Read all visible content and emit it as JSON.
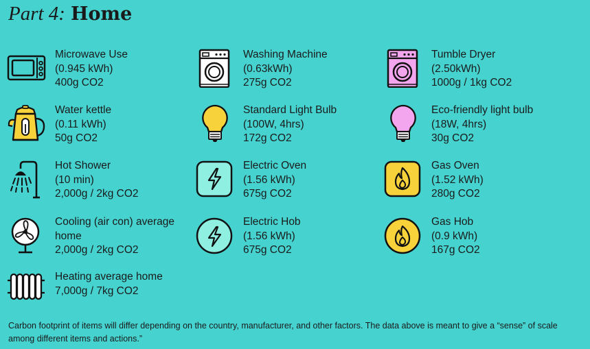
{
  "header": {
    "part": "Part 4:",
    "title": "Home"
  },
  "items": [
    {
      "name": "Microwave Use",
      "usage": "(0.945 kWh)",
      "co2": "400g CO2",
      "icon": "microwave-icon"
    },
    {
      "name": "Washing Machine",
      "usage": "(0.63kWh)",
      "co2": "275g CO2",
      "icon": "washing-machine-icon"
    },
    {
      "name": "Tumble Dryer",
      "usage": "(2.50kWh)",
      "co2": "1000g / 1kg CO2",
      "icon": "tumble-dryer-icon"
    },
    {
      "name": "Water kettle",
      "usage": "(0.11 kWh)",
      "co2": "50g CO2",
      "icon": "kettle-icon"
    },
    {
      "name": "Standard Light Bulb",
      "usage": "(100W, 4hrs)",
      "co2": "172g CO2",
      "icon": "light-bulb-icon"
    },
    {
      "name": "Eco-friendly light bulb",
      "usage": "(18W, 4hrs)",
      "co2": "30g CO2",
      "icon": "eco-light-bulb-icon"
    },
    {
      "name": "Hot Shower",
      "usage": "(10 min)",
      "co2": "2,000g / 2kg CO2",
      "icon": "shower-icon"
    },
    {
      "name": "Electric Oven",
      "usage": "(1.56 kWh)",
      "co2": "675g CO2",
      "icon": "electric-oven-icon"
    },
    {
      "name": "Gas Oven",
      "usage": "(1.52 kWh)",
      "co2": "280g CO2",
      "icon": "gas-oven-icon"
    },
    {
      "name": "Cooling (air con) average home",
      "co2": "2,000g / 2kg CO2",
      "icon": "fan-icon"
    },
    {
      "name": "Electric Hob",
      "usage": "(1.56 kWh)",
      "co2": "675g CO2",
      "icon": "electric-hob-icon"
    },
    {
      "name": "Gas Hob",
      "usage": "(0.9 kWh)",
      "co2": "167g CO2",
      "icon": "gas-hob-icon"
    },
    {
      "name": "Heating average home",
      "co2": "7,000g / 7kg CO2",
      "icon": "radiator-icon"
    }
  ],
  "footnote": "Carbon footprint of items will differ depending on the country, manufacturer, and other factors. The data above is meant to give a “sense” of scale among different items and actions.”",
  "colors": {
    "background": "#46d3d0",
    "yellow": "#f7d23a",
    "pink": "#f3a6ee",
    "mint": "#8ff0e2"
  }
}
